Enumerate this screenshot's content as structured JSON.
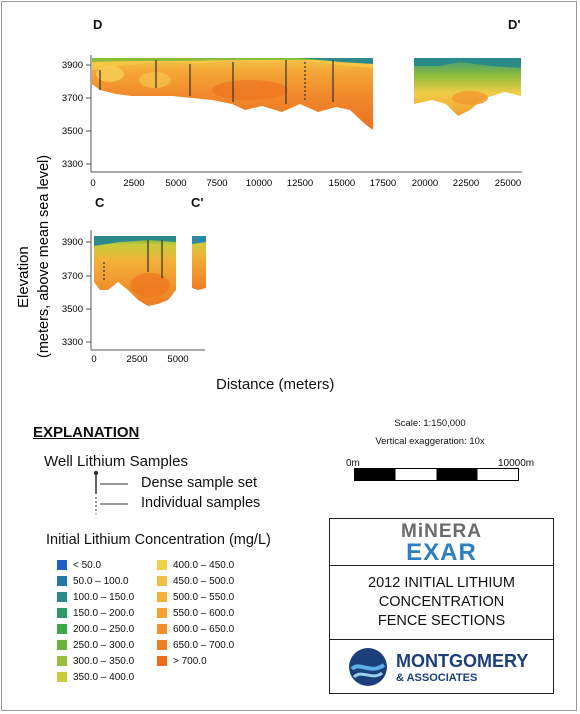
{
  "section_dd": {
    "left_label": "D",
    "right_label": "D'"
  },
  "section_cc": {
    "left_label": "C",
    "right_label": "C'"
  },
  "axes": {
    "ylabel_line1": "Elevation",
    "ylabel_line2": "(meters, above mean sea level)",
    "xlabel": "Distance (meters)",
    "top_y_ticks": [
      "3900",
      "3700",
      "3500",
      "3300"
    ],
    "top_x_ticks": [
      "0",
      "2500",
      "5000",
      "7500",
      "10000",
      "12500",
      "15000",
      "17500",
      "20000",
      "22500",
      "25000"
    ],
    "bottom_y_ticks": [
      "3900",
      "3700",
      "3500",
      "3300"
    ],
    "bottom_x_ticks": [
      "0",
      "2500",
      "5000"
    ]
  },
  "explanation": {
    "title": "EXPLANATION",
    "well_title": "Well Lithium Samples",
    "dense": "Dense sample set",
    "individual": "Individual samples",
    "concentration_title": "Initial Lithium Concentration (mg/L)"
  },
  "legend": {
    "left": [
      {
        "label": "< 50.0",
        "color": "#1f5fc8"
      },
      {
        "label": "50.0 – 100.0",
        "color": "#2478a8"
      },
      {
        "label": "100.0 – 150.0",
        "color": "#2a8a8a"
      },
      {
        "label": "150.0 – 200.0",
        "color": "#2e9a6a"
      },
      {
        "label": "200.0 – 250.0",
        "color": "#3aa84a"
      },
      {
        "label": "250.0 – 300.0",
        "color": "#6ab43a"
      },
      {
        "label": "300.0 – 350.0",
        "color": "#98c03a"
      },
      {
        "label": "350.0 – 400.0",
        "color": "#c6cc3a"
      }
    ],
    "right": [
      {
        "label": "400.0 – 450.0",
        "color": "#f0d048"
      },
      {
        "label": "450.0 – 500.0",
        "color": "#f2c040"
      },
      {
        "label": "500.0 – 550.0",
        "color": "#f4b03a"
      },
      {
        "label": "550.0 – 600.0",
        "color": "#f4a032"
      },
      {
        "label": "600.0 – 650.0",
        "color": "#f2902a"
      },
      {
        "label": "650.0 – 700.0",
        "color": "#f07e22"
      },
      {
        "label": "> 700.0",
        "color": "#ec6c1a"
      }
    ]
  },
  "scale": {
    "text": "Scale: 1:150,000",
    "exaggeration": "Vertical exaggeration: 10x",
    "start": "0m",
    "end": "10000m"
  },
  "title_block": {
    "logo_top": "MiNERA",
    "logo_bottom": "EXAR",
    "line1": "2012 INITIAL LITHIUM",
    "line2": "CONCENTRATION",
    "line3": "FENCE SECTIONS",
    "company": "MONTGOMERY",
    "company_sub": "& ASSOCIATES"
  }
}
